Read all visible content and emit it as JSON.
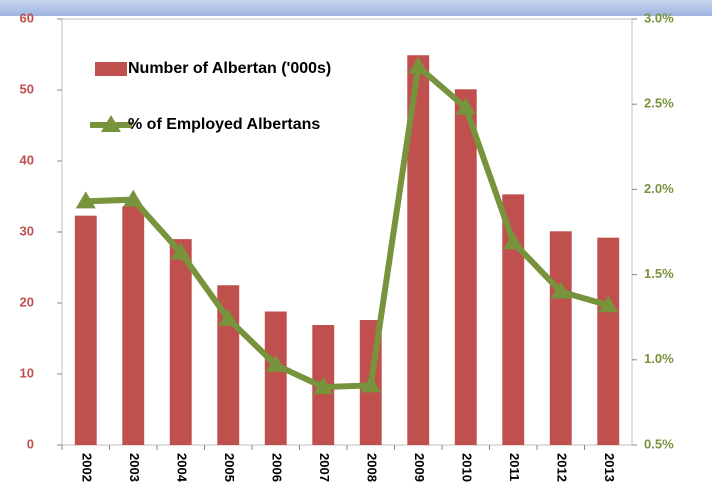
{
  "chart_data": {
    "type": "bar-line",
    "categories": [
      "2002",
      "2003",
      "2004",
      "2005",
      "2006",
      "2007",
      "2008",
      "2009",
      "2010",
      "2011",
      "2012",
      "2013"
    ],
    "series": [
      {
        "name": "Number of Albertan ('000s)",
        "type": "bar",
        "color": "#c0504d",
        "values": [
          32.3,
          33.6,
          29.0,
          22.5,
          18.8,
          16.9,
          17.6,
          54.9,
          50.1,
          35.3,
          30.1,
          29.2
        ]
      },
      {
        "name": "% of Employed Albertans",
        "type": "line",
        "axis": "y2",
        "color": "#77933c",
        "values": [
          1.93,
          1.94,
          1.63,
          1.24,
          0.97,
          0.84,
          0.85,
          2.72,
          2.48,
          1.69,
          1.4,
          1.32
        ]
      }
    ],
    "ylim": [
      0,
      60
    ],
    "yticks": [
      0,
      10,
      20,
      30,
      40,
      50,
      60
    ],
    "y2lim": [
      0.5,
      3.0
    ],
    "y2ticks": [
      {
        "value": 0.5,
        "label": "0.5%"
      },
      {
        "value": 1.0,
        "label": "1.0%"
      },
      {
        "value": 1.5,
        "label": "1.5%"
      },
      {
        "value": 2.0,
        "label": "2.0%"
      },
      {
        "value": 2.5,
        "label": "2.5%"
      },
      {
        "value": 3.0,
        "label": "3.0%"
      }
    ],
    "legend": "upper left"
  }
}
